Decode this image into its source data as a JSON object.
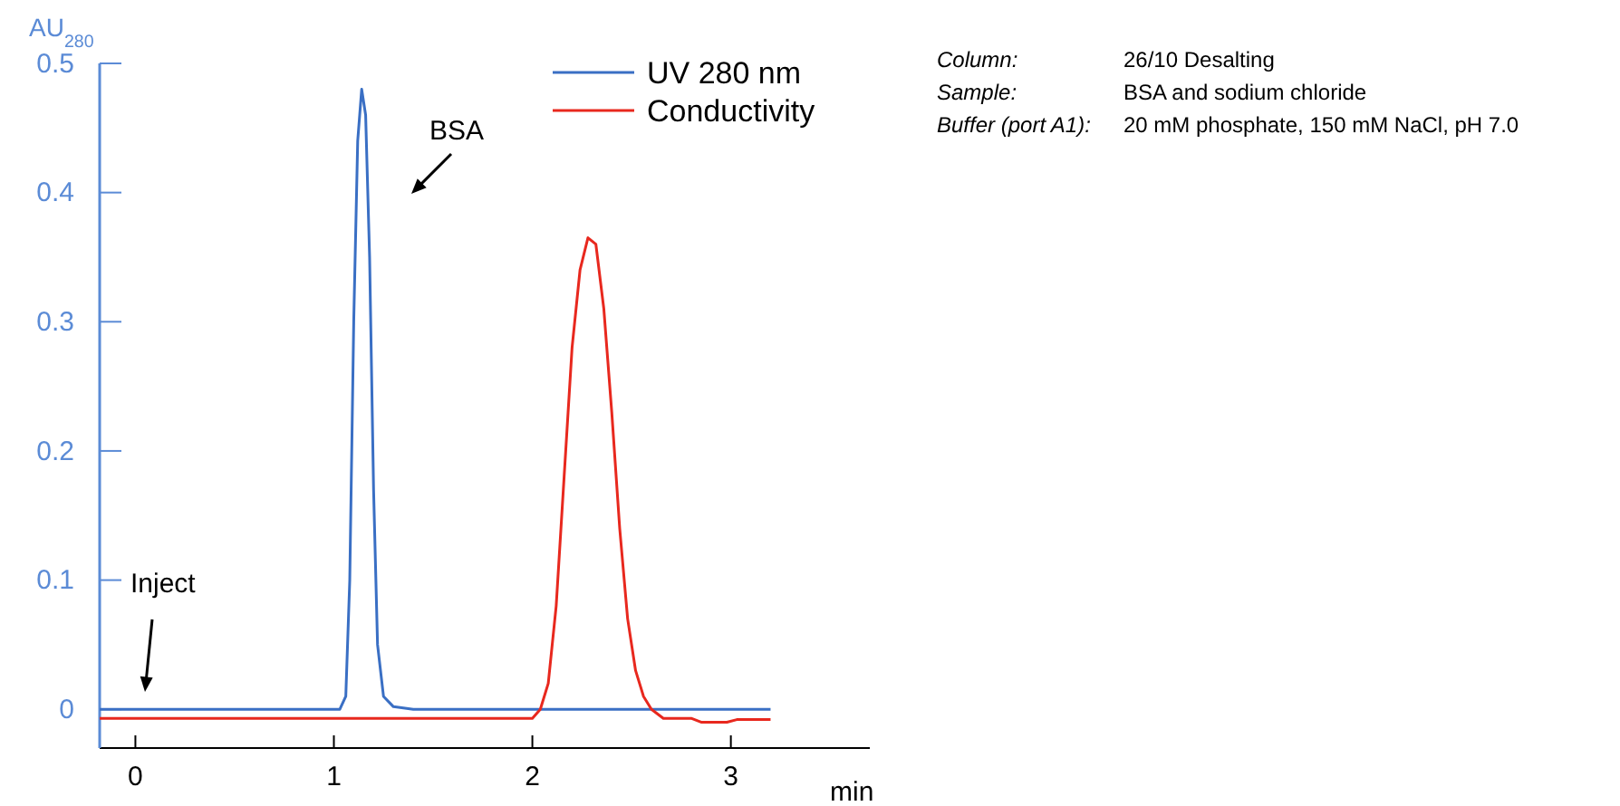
{
  "chart_data": {
    "type": "line",
    "ylabel": "AU$_{280}$",
    "xlabel": "min",
    "xlim": [
      -0.18,
      3.7
    ],
    "xticks": [
      0,
      1,
      2,
      3
    ],
    "ylim": [
      -0.03,
      0.5
    ],
    "yticks": [
      0,
      0.1,
      0.2,
      0.3,
      0.4,
      0.5
    ],
    "legend": "top right",
    "grid": false,
    "marker": "none",
    "line_style": "solid",
    "series": [
      {
        "name": "UV 280 nm",
        "color": "#3a6fc4",
        "x": [
          -0.18,
          1.03,
          1.06,
          1.08,
          1.1,
          1.12,
          1.14,
          1.16,
          1.18,
          1.2,
          1.22,
          1.25,
          1.3,
          1.4,
          3.2
        ],
        "values": [
          0,
          0,
          0.01,
          0.1,
          0.3,
          0.44,
          0.48,
          0.46,
          0.35,
          0.17,
          0.05,
          0.01,
          0.002,
          0,
          0
        ]
      },
      {
        "name": "Conductivity",
        "color": "#e8281e",
        "x": [
          -0.18,
          2.0,
          2.04,
          2.08,
          2.12,
          2.16,
          2.2,
          2.24,
          2.28,
          2.32,
          2.36,
          2.4,
          2.44,
          2.48,
          2.52,
          2.56,
          2.6,
          2.66,
          2.8,
          2.85,
          2.98,
          3.03,
          3.2
        ],
        "values": [
          -0.007,
          -0.007,
          0,
          0.02,
          0.08,
          0.18,
          0.28,
          0.34,
          0.365,
          0.36,
          0.31,
          0.23,
          0.14,
          0.07,
          0.03,
          0.01,
          0,
          -0.007,
          -0.007,
          -0.01,
          -0.01,
          -0.008,
          -0.008
        ]
      }
    ],
    "annotations": [
      "BSA",
      "Inject",
      "Column:",
      "26/10 Desalting",
      "Sample:",
      "BSA and sodium chloride",
      "Buffer (port A1):",
      "20 mM phosphate, 150 mM NaCl, pH 7.0"
    ]
  }
}
